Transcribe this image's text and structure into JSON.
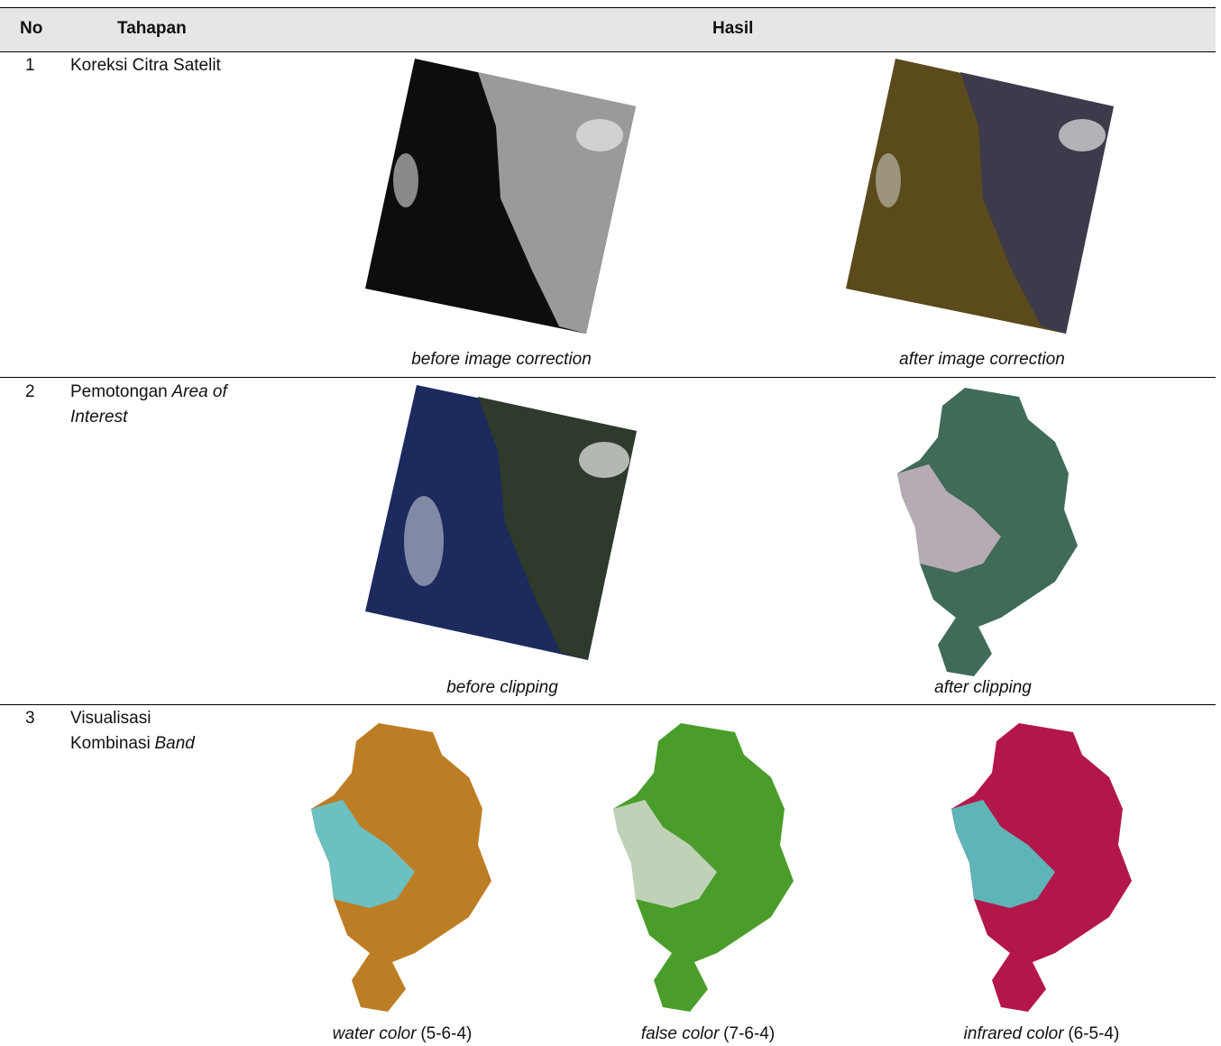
{
  "table": {
    "header": {
      "no": "No",
      "stage": "Tahapan",
      "result": "Hasil"
    },
    "rows": [
      {
        "no": "1",
        "stage": [
          {
            "text": "Koreksi Citra Satelit",
            "italic": false
          }
        ],
        "results": [
          [
            {
              "text": "before image correction",
              "italic": true
            }
          ],
          [
            {
              "text": "after image correction",
              "italic": true
            }
          ]
        ]
      },
      {
        "no": "2",
        "stage": [
          {
            "text": "Pemotongan",
            "italic": false
          },
          {
            "text": "Area of Interest",
            "italic": true
          }
        ],
        "results": [
          [
            {
              "text": "before clipping",
              "italic": true
            }
          ],
          [
            {
              "text": "after clipping",
              "italic": true
            }
          ]
        ]
      },
      {
        "no": "3",
        "stage": [
          {
            "text": "Visualisasi Kombinasi",
            "italic": false
          },
          {
            "text": "Band",
            "italic": true
          }
        ],
        "results": [
          [
            {
              "text": "water color",
              "italic": true
            },
            {
              "text": "(5-6-4)",
              "italic": false
            }
          ],
          [
            {
              "text": "false color",
              "italic": true
            },
            {
              "text": "(7-6-4)",
              "italic": false
            }
          ],
          [
            {
              "text": "infrared color",
              "italic": true
            },
            {
              "text": "(6-5-4)",
              "italic": false
            }
          ]
        ]
      }
    ]
  }
}
